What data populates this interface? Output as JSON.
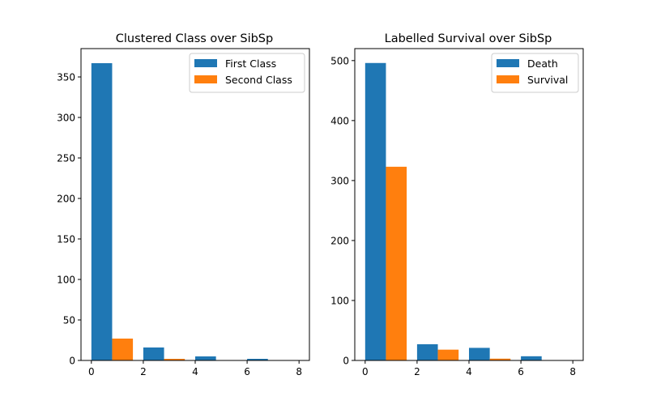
{
  "chart_data": [
    {
      "type": "bar",
      "title": "Clustered Class over SibSp",
      "xlim": [
        -0.4,
        8.4
      ],
      "ylim": [
        0,
        385
      ],
      "xticks": [
        0,
        2,
        4,
        6,
        8
      ],
      "yticks": [
        0,
        50,
        100,
        150,
        200,
        250,
        300,
        350
      ],
      "xlabel": "",
      "ylabel": "",
      "legend_position": "top-right",
      "grid": false,
      "bar_width": 0.8,
      "series": [
        {
          "name": "First Class",
          "color": "#1f77b4",
          "x": [
            0.4,
            2.4,
            4.4,
            6.4
          ],
          "values": [
            367,
            16,
            5,
            2
          ]
        },
        {
          "name": "Second Class",
          "color": "#ff7f0e",
          "x": [
            1.2,
            3.2,
            5.2,
            7.2
          ],
          "values": [
            27,
            2,
            0,
            0
          ]
        }
      ]
    },
    {
      "type": "bar",
      "title": "Labelled Survival over SibSp",
      "xlim": [
        -0.4,
        8.4
      ],
      "ylim": [
        0,
        520
      ],
      "xticks": [
        0,
        2,
        4,
        6,
        8
      ],
      "yticks": [
        0,
        100,
        200,
        300,
        400,
        500
      ],
      "xlabel": "",
      "ylabel": "",
      "legend_position": "top-right",
      "grid": false,
      "bar_width": 0.8,
      "series": [
        {
          "name": "Death",
          "color": "#1f77b4",
          "x": [
            0.4,
            2.4,
            4.4,
            6.4
          ],
          "values": [
            496,
            27,
            21,
            7
          ]
        },
        {
          "name": "Survival",
          "color": "#ff7f0e",
          "x": [
            1.2,
            3.2,
            5.2,
            7.2
          ],
          "values": [
            323,
            18,
            3,
            0
          ]
        }
      ]
    }
  ]
}
